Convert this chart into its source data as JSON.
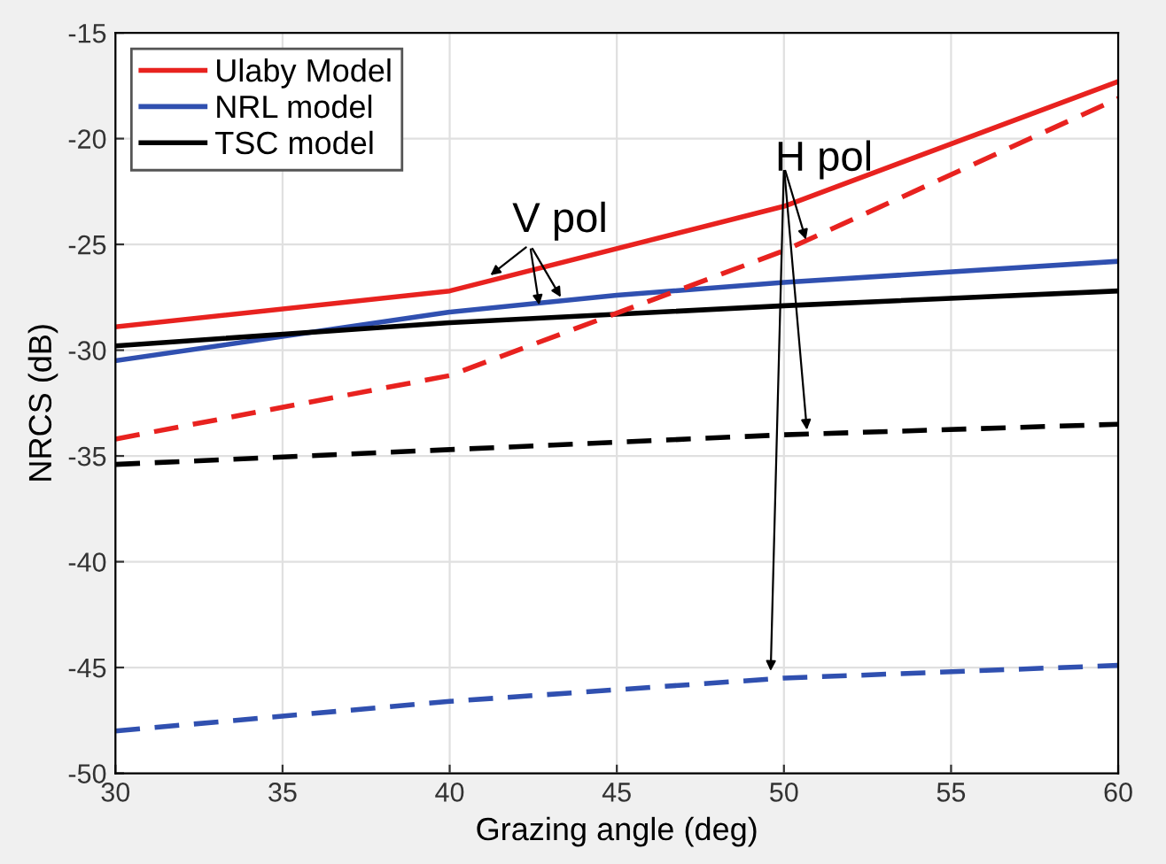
{
  "chart_data": {
    "type": "line",
    "xlabel": "Grazing angle (deg)",
    "ylabel": "NRCS (dB)",
    "xlim": [
      30,
      60
    ],
    "xticks": [
      30,
      35,
      40,
      45,
      50,
      55,
      60
    ],
    "ylim": [
      -50,
      -15
    ],
    "yticks": [
      -50,
      -45,
      -40,
      -35,
      -30,
      -25,
      -20,
      -15
    ],
    "grid": true,
    "legend": "top left",
    "marker": "none",
    "annotations": [
      {
        "text": "V pol",
        "x": 41.1,
        "y": -26.6
      },
      {
        "text": "H pol",
        "x": 50.7,
        "y": -25.0
      }
    ],
    "series": [
      {
        "name": "Ulaby Model",
        "color": "#e8221f",
        "line_style": "solid",
        "x": [
          30,
          40,
          50,
          60
        ],
        "values": [
          -28.9,
          -27.2,
          -23.2,
          -17.3
        ]
      },
      {
        "name": "NRL model",
        "color": "#3050b0",
        "line_style": "solid",
        "x": [
          30,
          40,
          45,
          50,
          60
        ],
        "values": [
          -30.5,
          -28.2,
          -27.4,
          -26.8,
          -25.8
        ]
      },
      {
        "name": "TSC model",
        "color": "#000000",
        "line_style": "solid",
        "x": [
          30,
          40,
          50,
          60
        ],
        "values": [
          -29.8,
          -28.7,
          -27.9,
          -27.2
        ]
      },
      {
        "color": "#e8221f",
        "line_style": "dashed",
        "x": [
          30,
          40,
          50,
          60
        ],
        "values": [
          -34.2,
          -31.2,
          -25.3,
          -18.1
        ]
      },
      {
        "color": "#3050b0",
        "line_style": "dashed",
        "x": [
          30,
          40,
          50,
          60
        ],
        "values": [
          -48.0,
          -46.6,
          -45.5,
          -44.9
        ]
      },
      {
        "color": "#000000",
        "line_style": "dashed",
        "x": [
          30,
          40,
          50,
          60
        ],
        "values": [
          -35.4,
          -34.7,
          -34.0,
          -33.5
        ]
      }
    ]
  }
}
